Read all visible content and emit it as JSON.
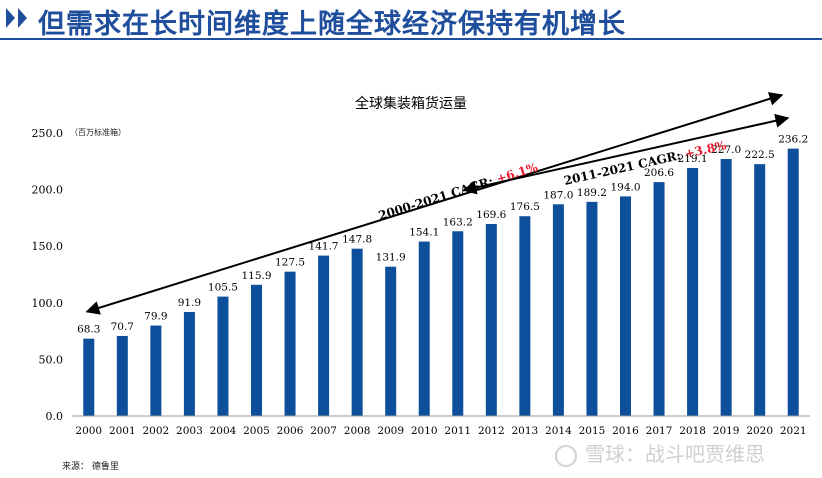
{
  "header": {
    "title": "但需求在长时间维度上随全球经济保持有机增长"
  },
  "footer": {
    "source": "来源： 德鲁里",
    "watermark": "雪球：战斗吧贾维思"
  },
  "colors": {
    "bar": "#0d4f9a",
    "header_accent": "#1f4e9c",
    "cagr_highlight": "#e8192c",
    "arrow": "#000000"
  },
  "chart_data": {
    "type": "bar",
    "title": "全球集装箱货运量",
    "ylabel": "（百万标准箱）",
    "xlabel": "",
    "categories": [
      "2000",
      "2001",
      "2002",
      "2003",
      "2004",
      "2005",
      "2006",
      "2007",
      "2008",
      "2009",
      "2010",
      "2011",
      "2012",
      "2013",
      "2014",
      "2015",
      "2016",
      "2017",
      "2018",
      "2019",
      "2020",
      "2021"
    ],
    "values": [
      68.3,
      70.7,
      79.9,
      91.9,
      105.5,
      115.9,
      127.5,
      141.7,
      147.8,
      131.9,
      154.1,
      163.2,
      169.6,
      176.5,
      187.0,
      189.2,
      194.0,
      206.6,
      219.1,
      227.0,
      222.5,
      236.2
    ],
    "value_labels": [
      "68.3",
      "70.7",
      "79.9",
      "91.9",
      "105.5",
      "115.9",
      "127.5",
      "141.7",
      "147.8",
      "131.9",
      "154.1",
      "163.2",
      "169.6",
      "176.5",
      "187.0",
      "189.2",
      "194.0",
      "206.6",
      "219.1",
      "227.0",
      "222.5",
      "236.2"
    ],
    "ylim": [
      0,
      250
    ],
    "yticks": [
      "0.0",
      "50.0",
      "100.0",
      "150.0",
      "200.0",
      "250.0"
    ],
    "grid": false,
    "legend": "none",
    "annotations": [
      {
        "prefix": "2000-2021 CAGR: ",
        "value": "+6.1%",
        "from": "2000",
        "to": "2021"
      },
      {
        "prefix": "2011-2021 CAGR: ",
        "value": "+3.8%",
        "from": "2011",
        "to": "2021"
      }
    ]
  }
}
